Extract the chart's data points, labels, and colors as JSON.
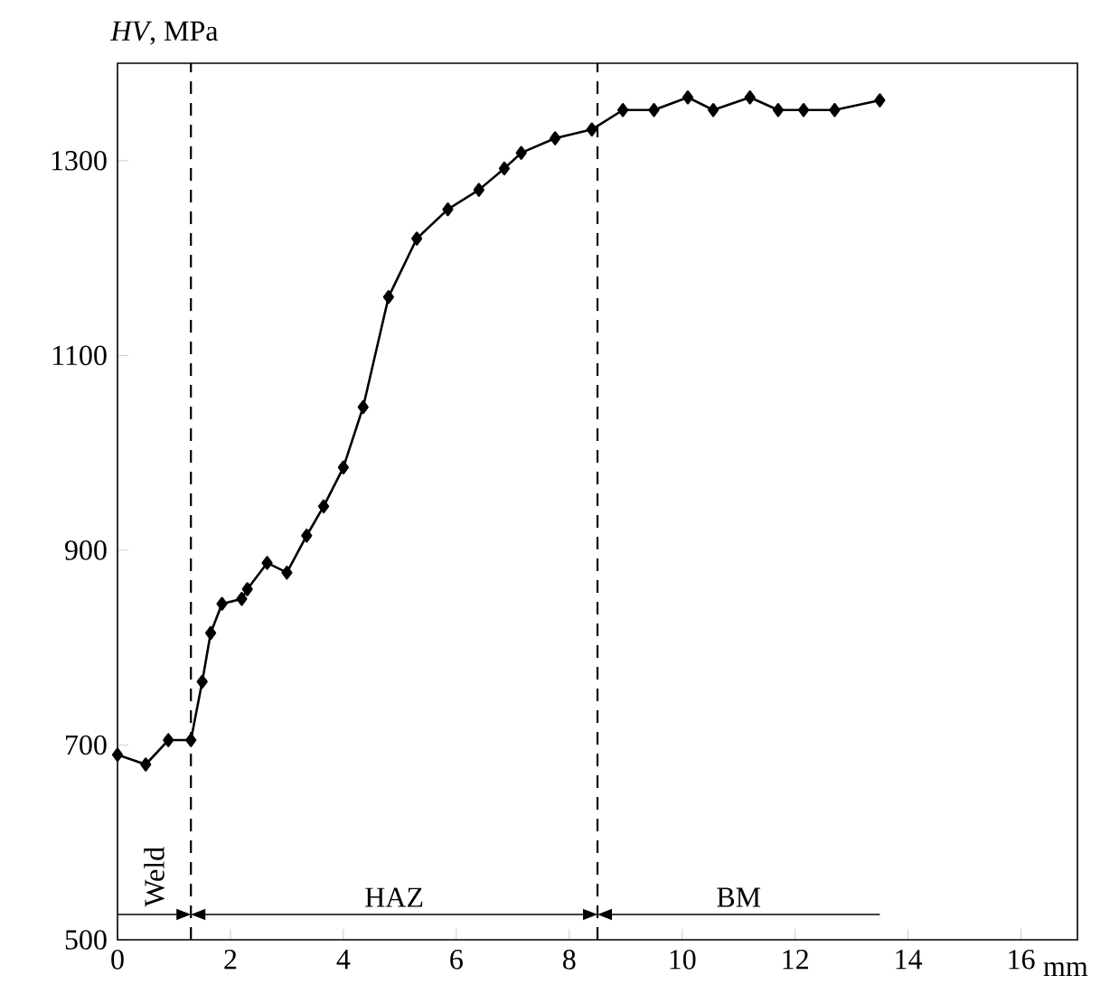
{
  "chart_data": {
    "type": "line",
    "ylabel": "*HV*, MPa",
    "xlabel": "mm",
    "x": [
      0,
      0.5,
      0.9,
      1.3,
      1.5,
      1.65,
      1.85,
      2.2,
      2.3,
      2.65,
      3.0,
      3.35,
      3.65,
      4.0,
      4.35,
      4.8,
      5.3,
      5.85,
      6.4,
      6.85,
      7.15,
      7.75,
      8.4,
      8.95,
      9.5,
      10.1,
      10.55,
      11.2,
      11.7,
      12.15,
      12.7,
      13.5
    ],
    "values": [
      690,
      680,
      705,
      705,
      765,
      815,
      845,
      850,
      860,
      887,
      877,
      915,
      945,
      985,
      1047,
      1160,
      1220,
      1250,
      1270,
      1292,
      1308,
      1323,
      1332,
      1352,
      1352,
      1365,
      1352,
      1365,
      1352,
      1352,
      1352,
      1362
    ],
    "color": "#000000",
    "marker": "diamond",
    "line_style": "solid",
    "xlim": [
      0,
      17
    ],
    "ylim": [
      500,
      1400
    ],
    "xticks": [
      0,
      2,
      4,
      6,
      8,
      10,
      12,
      14,
      16
    ],
    "yticks": [
      500,
      700,
      900,
      1100,
      1300
    ],
    "ref_lines": [
      {
        "axis": "x",
        "value": 1.3,
        "line_style": "dashed"
      },
      {
        "axis": "x",
        "value": 8.5,
        "line_style": "dashed"
      }
    ],
    "annotations": [
      "Weld",
      "HAZ",
      "BM"
    ],
    "grid": false
  }
}
